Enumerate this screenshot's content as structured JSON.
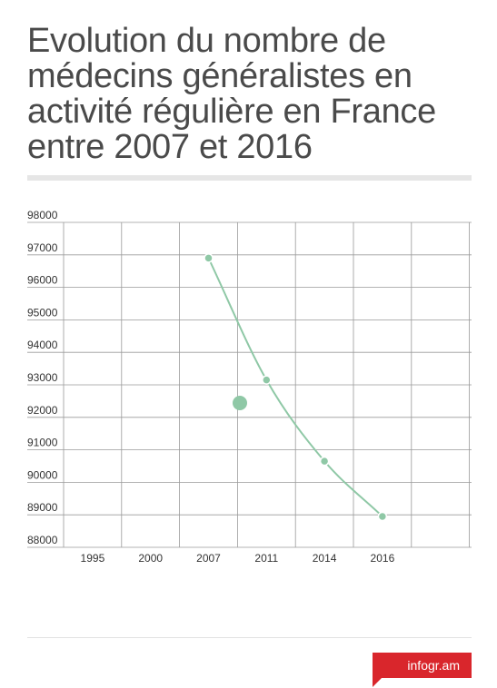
{
  "title": "Evolution du nombre de médecins généralistes en activité régulière en France entre 2007 et 2016",
  "brand": "infogr.am",
  "chart_data": {
    "type": "line",
    "categories": [
      "1995",
      "2000",
      "2007",
      "2011",
      "2014",
      "2016"
    ],
    "series": [
      {
        "name": "",
        "values": [
          null,
          null,
          96900,
          93150,
          90650,
          88950
        ],
        "color": "#8fc8a6"
      }
    ],
    "y_ticks": [
      98000,
      97000,
      96000,
      95000,
      94000,
      93000,
      92000,
      91000,
      90000,
      89000,
      88000
    ],
    "ylim": [
      88000,
      98000
    ],
    "grid": true,
    "legend": "bottom",
    "title": "",
    "xlabel": "",
    "ylabel": ""
  }
}
